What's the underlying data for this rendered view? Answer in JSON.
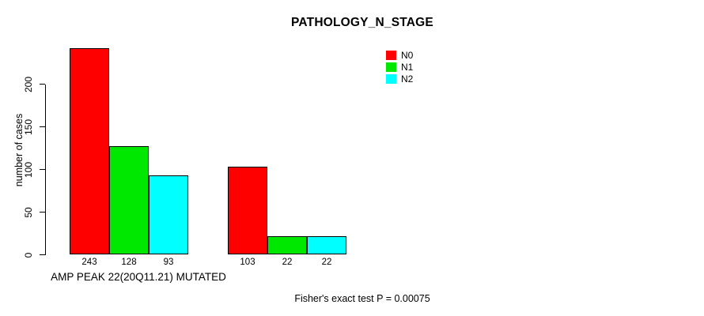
{
  "title": "PATHOLOGY_N_STAGE",
  "footer": "Fisher's exact test P = 0.00075",
  "chart_data": {
    "type": "bar",
    "title": "PATHOLOGY_N_STAGE",
    "ylabel": "number of cases",
    "xlabel": "AMP PEAK 22(20Q11.21) MUTATED",
    "yticks": [
      0,
      50,
      100,
      150,
      200
    ],
    "ylim": [
      0,
      243
    ],
    "grid": false,
    "legend_position": "top-right",
    "categories": [
      "AMP PEAK 22(20Q11.21) MUTATED",
      ""
    ],
    "series": [
      {
        "name": "N0",
        "color": "#ff0000",
        "values": [
          243,
          103
        ]
      },
      {
        "name": "N1",
        "color": "#00e800",
        "values": [
          128,
          22
        ]
      },
      {
        "name": "N2",
        "color": "#00ffff",
        "values": [
          93,
          22
        ]
      }
    ],
    "groups": [
      {
        "label": "AMP PEAK 22(20Q11.21) MUTATED",
        "values": [
          243,
          128,
          93
        ]
      },
      {
        "label": "",
        "values": [
          103,
          22,
          22
        ]
      }
    ],
    "annotation": "Fisher's exact test P = 0.00075"
  }
}
